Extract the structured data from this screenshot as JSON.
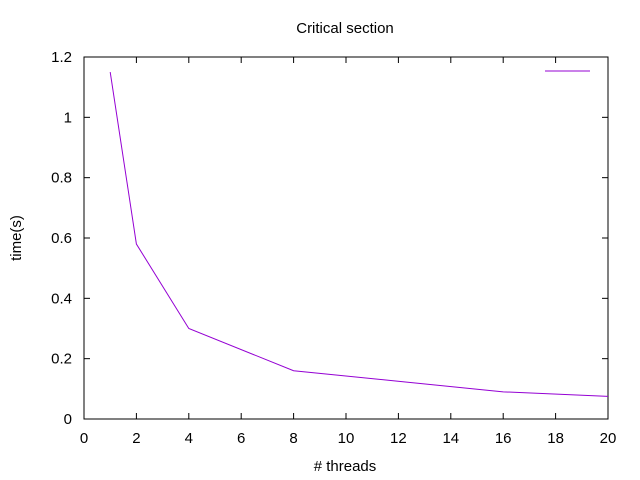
{
  "chart_data": {
    "type": "line",
    "title": "Critical section",
    "xlabel": "# threads",
    "ylabel": "time(s)",
    "xlim": [
      0,
      20
    ],
    "ylim": [
      0,
      1.2
    ],
    "xticks": [
      0,
      2,
      4,
      6,
      8,
      10,
      12,
      14,
      16,
      18,
      20
    ],
    "yticks": [
      0,
      0.2,
      0.4,
      0.6,
      0.8,
      1,
      1.2
    ],
    "grid": false,
    "legend": "top-right",
    "series": [
      {
        "x": [
          1,
          2,
          4,
          8,
          16,
          20
        ],
        "y": [
          1.15,
          0.58,
          0.3,
          0.16,
          0.09,
          0.075
        ],
        "color": "#9400d3"
      }
    ]
  }
}
